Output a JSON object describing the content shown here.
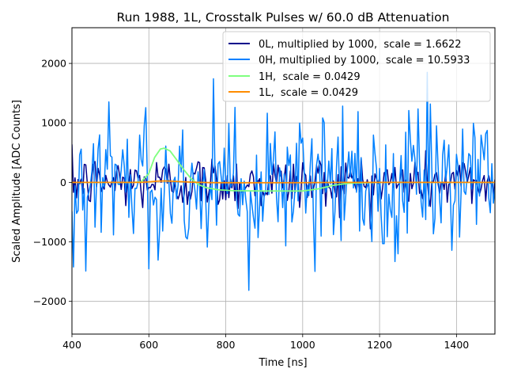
{
  "chart_data": {
    "type": "line",
    "title": "Run 1988, 1L, Crosstalk Pulses w/ 60.0 dB Attenuation",
    "xlabel": "Time [ns]",
    "ylabel": "Scaled Amplitude [ADC Counts]",
    "xlim": [
      400,
      1500
    ],
    "ylim": [
      -2550,
      2600
    ],
    "xticks": [
      400,
      600,
      800,
      1000,
      1200,
      1400
    ],
    "yticks": [
      -2000,
      -1000,
      0,
      1000,
      2000
    ],
    "xtick_labels": [
      "400",
      "600",
      "800",
      "1000",
      "1200",
      "1400"
    ],
    "ytick_labels": [
      "−2000",
      "−1000",
      "0",
      "1000",
      "2000"
    ],
    "grid": true,
    "legend_position": "top-right",
    "series": [
      {
        "name": "0L, multiplied by 1000,  scale = 1.6622",
        "color": "#00008b",
        "kind": "noise",
        "sample_step_ns": 4,
        "description_values": {
          "noise_rms": 230,
          "max_abs": 780
        }
      },
      {
        "name": "0H, multiplied by 1000,  scale = 10.5933",
        "color": "#0080ff",
        "kind": "noise",
        "sample_step_ns": 4,
        "description_values": {
          "noise_rms": 640,
          "max_abs": 1850
        }
      },
      {
        "name": "1H,  scale = 0.0429",
        "color": "#7fff7f",
        "kind": "pulse",
        "x": [
          400,
          560,
          580,
          600,
          615,
          630,
          640,
          655,
          670,
          690,
          710,
          730,
          750,
          780,
          820,
          900,
          1000,
          1040,
          1080,
          1120,
          1200,
          1300,
          1500
        ],
        "y": [
          0,
          0,
          10,
          150,
          420,
          560,
          575,
          530,
          400,
          220,
          60,
          -40,
          -90,
          -125,
          -140,
          -145,
          -145,
          -110,
          -50,
          -15,
          0,
          0,
          0
        ]
      },
      {
        "name": "1L,  scale = 0.0429",
        "color": "#ff8c00",
        "kind": "pulse",
        "x": [
          400,
          580,
          600,
          620,
          640,
          660,
          690,
          720,
          760,
          850,
          1000,
          1100,
          1500
        ],
        "y": [
          0,
          0,
          8,
          20,
          25,
          20,
          10,
          2,
          -4,
          -6,
          -5,
          0,
          0
        ]
      }
    ]
  }
}
